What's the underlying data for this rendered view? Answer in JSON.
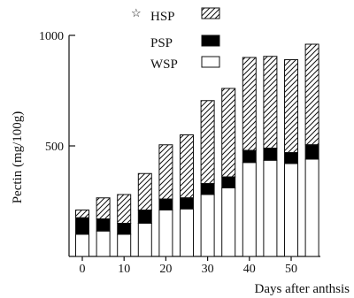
{
  "chart_data": {
    "type": "bar",
    "stacked": true,
    "title": "",
    "xlabel": "Days after anthsis",
    "ylabel": "Pectin (mg/100g)",
    "legend_marker": "☆",
    "legend_position": "top-left",
    "x": [
      0,
      5,
      10,
      15,
      20,
      25,
      30,
      35,
      40,
      45,
      50,
      55
    ],
    "x_ticks": [
      0,
      10,
      20,
      30,
      40,
      50
    ],
    "x_tick_labels": [
      "0",
      "10",
      "20",
      "30",
      "40",
      "50"
    ],
    "y_ticks": [
      500,
      1000
    ],
    "y_tick_labels": [
      "500",
      "1000"
    ],
    "ylim": [
      0,
      1000
    ],
    "grid": false,
    "series": [
      {
        "name": "HSP",
        "pattern": "hatch",
        "values": [
          35,
          95,
          130,
          165,
          245,
          285,
          375,
          400,
          420,
          415,
          420,
          455
        ]
      },
      {
        "name": "PSP",
        "pattern": "solid",
        "color": "#000000",
        "values": [
          75,
          55,
          50,
          60,
          50,
          50,
          50,
          50,
          55,
          55,
          50,
          65
        ]
      },
      {
        "name": "WSP",
        "pattern": "empty",
        "values": [
          100,
          115,
          100,
          150,
          210,
          215,
          280,
          310,
          425,
          435,
          420,
          440
        ]
      }
    ]
  }
}
